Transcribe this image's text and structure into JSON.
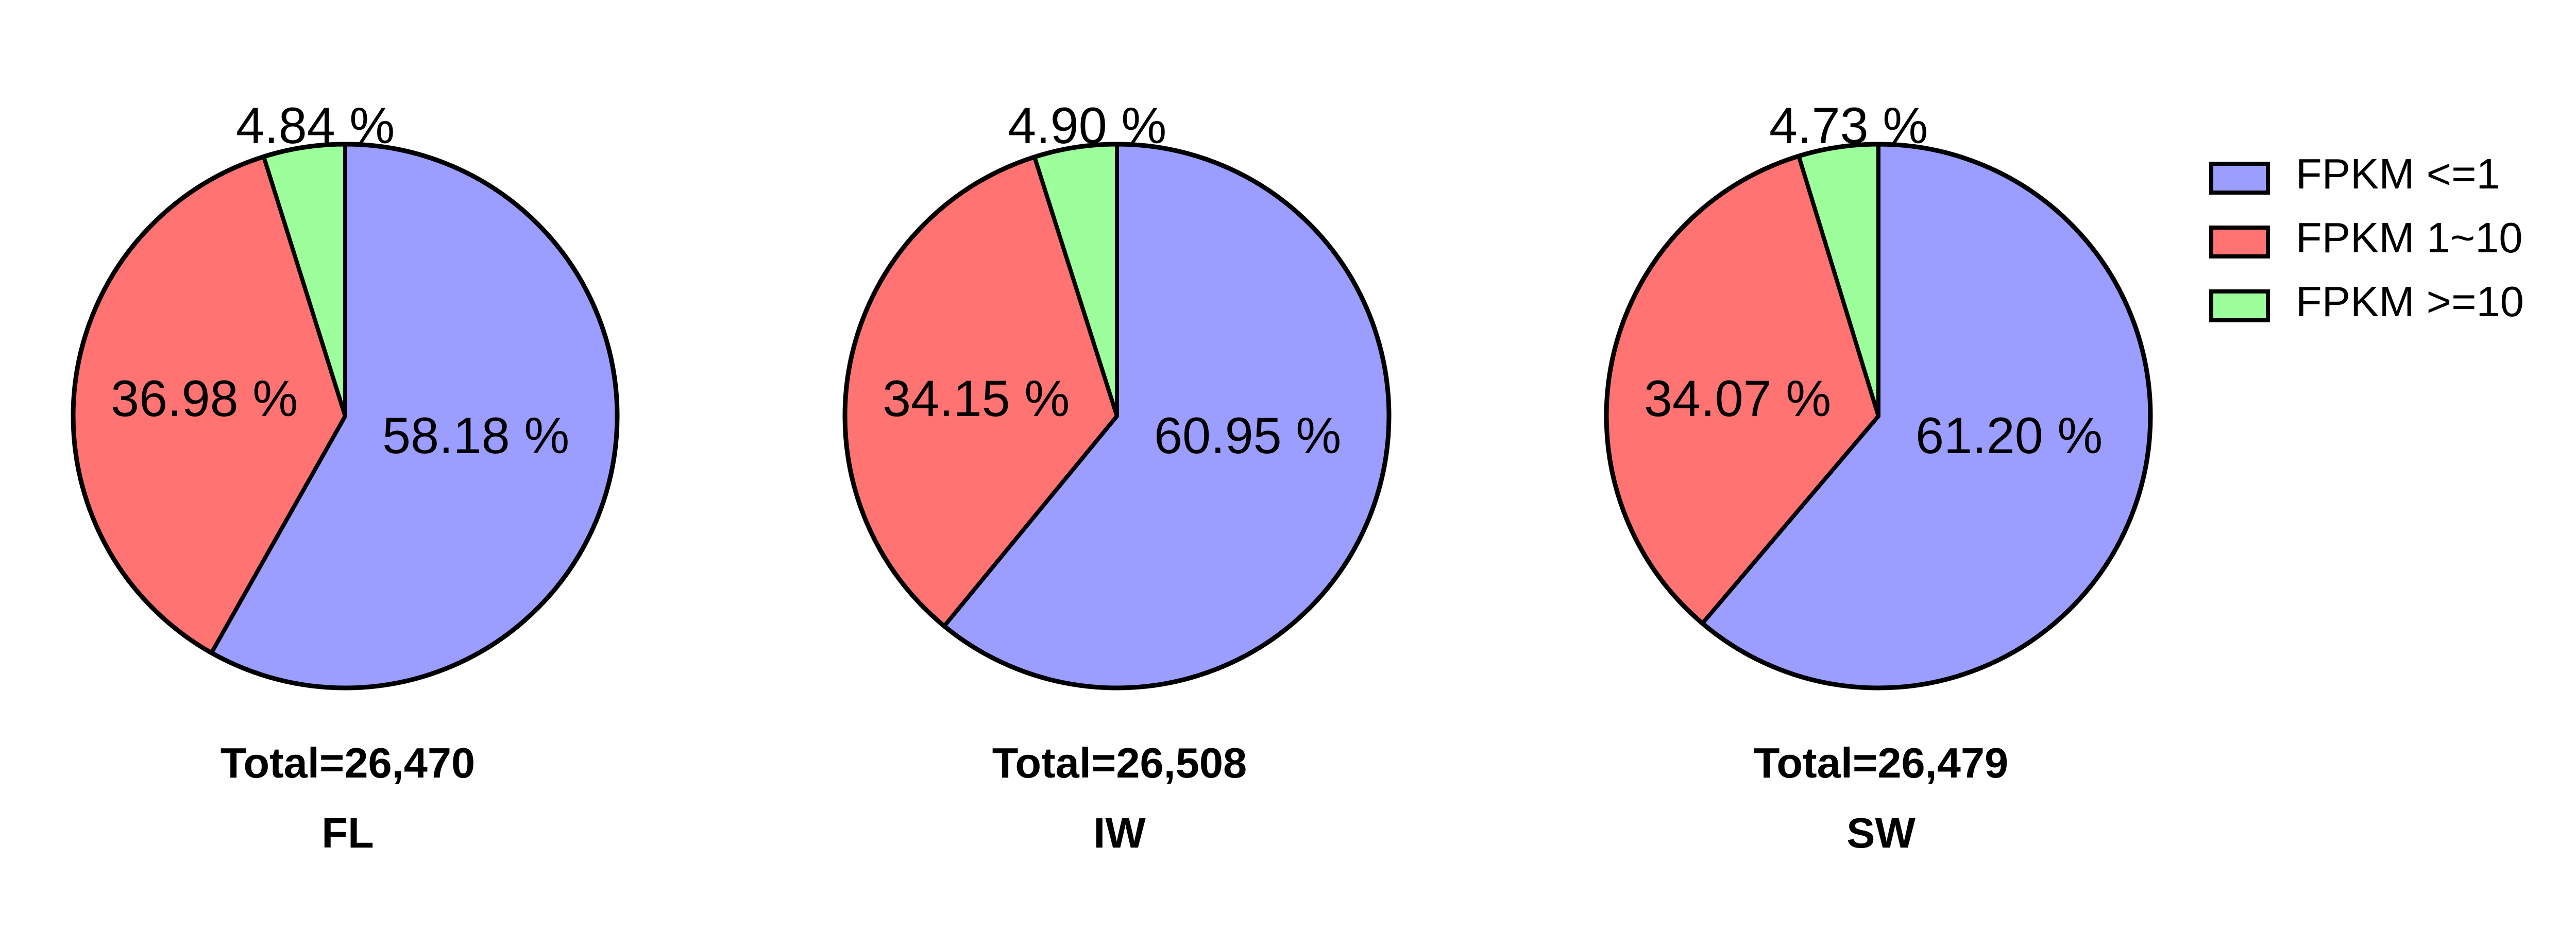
{
  "chart_data": [
    {
      "type": "pie",
      "title": "",
      "group": "FL",
      "total_label": "Total=26,470",
      "slices": [
        {
          "series": "FPKM <=1",
          "value": 58.18,
          "label": "58.18 %"
        },
        {
          "series": "FPKM 1~10",
          "value": 36.98,
          "label": "36.98 %"
        },
        {
          "series": "FPKM >=10",
          "value": 4.84,
          "label": "4.84 %"
        }
      ]
    },
    {
      "type": "pie",
      "title": "",
      "group": "IW",
      "total_label": "Total=26,508",
      "slices": [
        {
          "series": "FPKM <=1",
          "value": 60.95,
          "label": "60.95 %"
        },
        {
          "series": "FPKM 1~10",
          "value": 34.15,
          "label": "34.15 %"
        },
        {
          "series": "FPKM >=10",
          "value": 4.9,
          "label": "4.90 %"
        }
      ]
    },
    {
      "type": "pie",
      "title": "",
      "group": "SW",
      "total_label": "Total=26,479",
      "slices": [
        {
          "series": "FPKM <=1",
          "value": 61.2,
          "label": "61.20 %"
        },
        {
          "series": "FPKM 1~10",
          "value": 34.07,
          "label": "34.07 %"
        },
        {
          "series": "FPKM >=10",
          "value": 4.73,
          "label": "4.73 %"
        }
      ]
    }
  ],
  "legend": {
    "placement": "right",
    "items": [
      {
        "label": "FPKM <=1",
        "color": "#9b9dff"
      },
      {
        "label": "FPKM 1~10",
        "color": "#ff7373"
      },
      {
        "label": "FPKM >=10",
        "color": "#9dff9b"
      }
    ]
  }
}
